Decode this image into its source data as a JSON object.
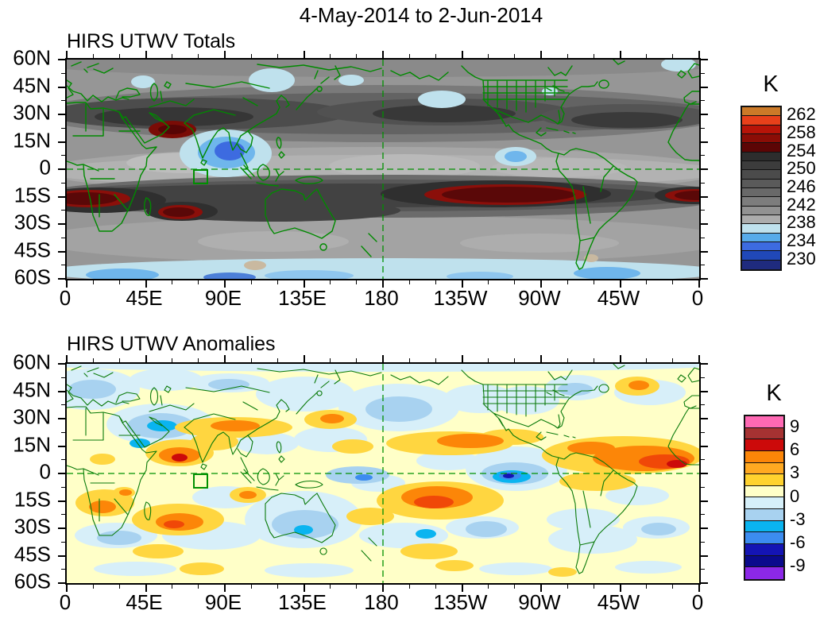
{
  "title": "4-May-2014 to 2-Jun-2014",
  "chart_data": [
    {
      "type": "heatmap",
      "title": "HIRS UTWV Totals",
      "projection": "equirectangular, lon 0E eastward to 360 (180 at center), lat 60N top to 60S bottom",
      "x_labels": [
        "0",
        "45E",
        "90E",
        "135E",
        "180",
        "135W",
        "90W",
        "45W",
        "0"
      ],
      "y_labels": [
        "60N",
        "45N",
        "30N",
        "15N",
        "0",
        "15S",
        "30S",
        "45S",
        "60S"
      ],
      "colorbar": {
        "title": "K",
        "tick_labels": [
          "262",
          "258",
          "254",
          "250",
          "246",
          "242",
          "238",
          "234",
          "230"
        ],
        "level_step_k": 2,
        "range_k": [
          228,
          264
        ],
        "colors_top_to_bottom": [
          "#cc7a28",
          "#e8401a",
          "#b81408",
          "#8b0d06",
          "#5c0505",
          "#2d2d2d",
          "#3c3c3c",
          "#4b4b4b",
          "#5a5a5a",
          "#696969",
          "#7d7d7d",
          "#929292",
          "#acacac",
          "#bfe1ed",
          "#57abea",
          "#3d6be0",
          "#2048b8",
          "#1f2b7e"
        ]
      },
      "feature_format": "ellipse [cx,cy,rx,ry,fill] in plot px (796x276), painted in order",
      "features": [
        [
          398,
          138,
          520,
          200,
          "#969696"
        ],
        [
          398,
          140,
          430,
          30,
          "#a6a6a6"
        ],
        [
          398,
          141,
          430,
          21,
          "#b2b2b2"
        ],
        [
          150,
          130,
          75,
          13,
          "#bdbdbd"
        ],
        [
          425,
          134,
          95,
          15,
          "#b9b9b9"
        ],
        [
          620,
          136,
          85,
          12,
          "#b7b7b7"
        ],
        [
          398,
          227,
          440,
          30,
          "#a3a3a3"
        ],
        [
          260,
          229,
          95,
          13,
          "#afafaf"
        ],
        [
          595,
          231,
          100,
          12,
          "#adadad"
        ],
        [
          398,
          6,
          430,
          16,
          "#8a8a8a"
        ],
        [
          398,
          68,
          440,
          36,
          "#7a7a7a"
        ],
        [
          398,
          68,
          430,
          26,
          "#636363"
        ],
        [
          165,
          68,
          190,
          20,
          "#4c4c4c"
        ],
        [
          475,
          66,
          160,
          17,
          "#515151"
        ],
        [
          705,
          72,
          110,
          16,
          "#545454"
        ],
        [
          135,
          72,
          100,
          12,
          "#363636"
        ],
        [
          475,
          68,
          90,
          11,
          "#383838"
        ],
        [
          705,
          76,
          70,
          10,
          "#3a3a3a"
        ],
        [
          133,
          88,
          30,
          11,
          "#7a0c06"
        ],
        [
          133,
          88,
          18,
          6,
          "#570505"
        ],
        [
          398,
          172,
          440,
          27,
          "#6b6b6b"
        ],
        [
          392,
          171,
          420,
          20,
          "#585858"
        ],
        [
          365,
          171,
          390,
          15,
          "#424242"
        ],
        [
          260,
          190,
          160,
          14,
          "#424242"
        ],
        [
          40,
          177,
          85,
          16,
          "#2f2f2f"
        ],
        [
          28,
          175,
          52,
          11,
          "#8b0f0a"
        ],
        [
          24,
          175,
          40,
          8,
          "#5a0808"
        ],
        [
          145,
          191,
          45,
          12,
          "#2f2f2f"
        ],
        [
          143,
          192,
          28,
          9,
          "#8b0f0a"
        ],
        [
          141,
          192,
          20,
          6,
          "#5a0808"
        ],
        [
          788,
          171,
          48,
          11,
          "#2f2f2f"
        ],
        [
          791,
          171,
          38,
          8,
          "#8b0f0a"
        ],
        [
          793,
          171,
          28,
          6,
          "#5a0808"
        ],
        [
          540,
          169,
          145,
          17,
          "#2f2f2f"
        ],
        [
          552,
          170,
          102,
          13,
          "#8b0f0a"
        ],
        [
          556,
          170,
          84,
          10,
          "#5a0808"
        ],
        [
          200,
          118,
          58,
          30,
          "#bfe1ed"
        ],
        [
          201,
          117,
          36,
          20,
          "#6fb6ec"
        ],
        [
          205,
          115,
          19,
          12,
          "#3d6be0"
        ],
        [
          258,
          26,
          29,
          15,
          "#bfe1ed"
        ],
        [
          472,
          50,
          30,
          11,
          "#bfe1ed"
        ],
        [
          358,
          26,
          16,
          7,
          "#bfe1ed"
        ],
        [
          96,
          28,
          15,
          8,
          "#bfe1ed"
        ],
        [
          770,
          6,
          22,
          9,
          "#bfe1ed"
        ],
        [
          608,
          40,
          10,
          5,
          "#bfe1ed"
        ],
        [
          565,
          122,
          26,
          12,
          "#bfe1ed"
        ],
        [
          565,
          122,
          14,
          7,
          "#6fb6ec"
        ],
        [
          398,
          267,
          430,
          17,
          "#bfe1ed"
        ],
        [
          70,
          271,
          46,
          8,
          "#6fb6ec"
        ],
        [
          305,
          272,
          56,
          7,
          "#8fc6ee"
        ],
        [
          680,
          269,
          42,
          8,
          "#6fb6ec"
        ],
        [
          205,
          274,
          33,
          6,
          "#4c7fd8"
        ],
        [
          520,
          273,
          42,
          6,
          "#8fc6ee"
        ],
        [
          237,
          259,
          14,
          6,
          "#c9b9a0"
        ],
        [
          660,
          250,
          9,
          5,
          "#c9b9a0"
        ]
      ]
    },
    {
      "type": "heatmap",
      "title": "HIRS UTWV Anomalies",
      "projection": "equirectangular, lon 0E eastward to 360 (180 at center), lat 60N top to 60S bottom",
      "x_labels": [
        "0",
        "45E",
        "90E",
        "135E",
        "180",
        "135W",
        "90W",
        "45W",
        "0"
      ],
      "y_labels": [
        "60N",
        "45N",
        "30N",
        "15N",
        "0",
        "15S",
        "30S",
        "45S",
        "60S"
      ],
      "colorbar": {
        "title": "K",
        "tick_labels": [
          "9",
          "6",
          "3",
          "0",
          "-3",
          "-6",
          "-9"
        ],
        "level_step_k": 1.5,
        "range_k": [
          -10.5,
          10.5
        ],
        "colors_top_to_bottom": [
          "#ff69b4",
          "#a63232",
          "#cc0a0a",
          "#fc8608",
          "#ffa921",
          "#ffd22e",
          "#ffffc8",
          "#d6f0fa",
          "#a8d2f0",
          "#0ab4f0",
          "#3c8cf0",
          "#1414b4",
          "#0a0a8c",
          "#8c28e8"
        ]
      },
      "feature_format": "ellipse [cx,cy,rx,ry,fill] in plot px (796x276), painted in order",
      "features": [
        [
          398,
          138,
          520,
          200,
          "#ffffc8"
        ],
        [
          30,
          32,
          62,
          26,
          "#d7eff9"
        ],
        [
          125,
          20,
          46,
          14,
          "#d7eff9"
        ],
        [
          205,
          24,
          50,
          12,
          "#d7eff9"
        ],
        [
          300,
          38,
          62,
          22,
          "#d7eff9"
        ],
        [
          418,
          55,
          76,
          30,
          "#d7eff9"
        ],
        [
          520,
          44,
          46,
          18,
          "#d7eff9"
        ],
        [
          578,
          46,
          42,
          18,
          "#d7eff9"
        ],
        [
          642,
          30,
          40,
          16,
          "#d7eff9"
        ],
        [
          734,
          36,
          45,
          16,
          "#d7eff9"
        ],
        [
          118,
          76,
          68,
          26,
          "#d7eff9"
        ],
        [
          252,
          100,
          40,
          14,
          "#d7eff9"
        ],
        [
          332,
          95,
          46,
          16,
          "#d7eff9"
        ],
        [
          392,
          150,
          34,
          11,
          "#d7eff9"
        ],
        [
          566,
          132,
          64,
          28,
          "#d7eff9"
        ],
        [
          298,
          196,
          74,
          36,
          "#d7eff9"
        ],
        [
          182,
          216,
          62,
          18,
          "#d7eff9"
        ],
        [
          62,
          216,
          52,
          16,
          "#d7eff9"
        ],
        [
          424,
          216,
          56,
          16,
          "#d7eff9"
        ],
        [
          523,
          206,
          46,
          14,
          "#d7eff9"
        ],
        [
          662,
          221,
          56,
          18,
          "#d7eff9"
        ],
        [
          742,
          206,
          42,
          14,
          "#d7eff9"
        ],
        [
          86,
          258,
          52,
          9,
          "#d7eff9"
        ],
        [
          305,
          260,
          56,
          9,
          "#d7eff9"
        ],
        [
          565,
          258,
          46,
          8,
          "#d7eff9"
        ],
        [
          732,
          256,
          42,
          8,
          "#d7eff9"
        ],
        [
          480,
          122,
          40,
          12,
          "#d7eff9"
        ],
        [
          718,
          166,
          40,
          12,
          "#d7eff9"
        ],
        [
          200,
          168,
          42,
          14,
          "#d7eff9"
        ],
        [
          650,
          196,
          46,
          14,
          "#d7eff9"
        ],
        [
          398,
          2,
          420,
          8,
          "#d7eff9"
        ],
        [
          118,
          78,
          42,
          16,
          "#a8d2f0"
        ],
        [
          32,
          32,
          30,
          12,
          "#a8d2f0"
        ],
        [
          418,
          57,
          42,
          16,
          "#a8d2f0"
        ],
        [
          564,
          138,
          42,
          14,
          "#a8d2f0"
        ],
        [
          300,
          202,
          42,
          18,
          "#a8d2f0"
        ],
        [
          66,
          219,
          28,
          9,
          "#a8d2f0"
        ],
        [
          745,
          208,
          22,
          8,
          "#a8d2f0"
        ],
        [
          366,
          140,
          40,
          11,
          "#a8d2f0"
        ],
        [
          204,
          26,
          26,
          7,
          "#a8d2f0"
        ],
        [
          640,
          32,
          22,
          8,
          "#a8d2f0"
        ],
        [
          528,
          208,
          26,
          10,
          "#a8d2f0"
        ],
        [
          120,
          78,
          19,
          7,
          "#0ab4f0"
        ],
        [
          560,
          142,
          24,
          8,
          "#0ab4f0"
        ],
        [
          298,
          209,
          12,
          6,
          "#0ab4f0"
        ],
        [
          452,
          214,
          13,
          6,
          "#0ab4f0"
        ],
        [
          92,
          100,
          13,
          6,
          "#0ab4f0"
        ],
        [
          558,
          141,
          14,
          5,
          "#3c8cf0"
        ],
        [
          556,
          141,
          7,
          3,
          "#1414b4"
        ],
        [
          374,
          143,
          11,
          4,
          "#3c8cf0"
        ],
        [
          210,
          80,
          74,
          13,
          "#ffd640"
        ],
        [
          142,
          112,
          43,
          17,
          "#ffd640"
        ],
        [
          186,
          98,
          30,
          11,
          "#ffd640"
        ],
        [
          332,
          70,
          33,
          12,
          "#ffd640"
        ],
        [
          228,
          165,
          23,
          10,
          "#ffd640"
        ],
        [
          140,
          196,
          58,
          20,
          "#ffd640"
        ],
        [
          48,
          175,
          37,
          17,
          "#ffd640"
        ],
        [
          470,
          172,
          80,
          24,
          "#ffd640"
        ],
        [
          482,
          100,
          80,
          15,
          "#ffd640"
        ],
        [
          700,
          115,
          102,
          24,
          "#ffd640"
        ],
        [
          668,
          148,
          48,
          12,
          "#ffd640"
        ],
        [
          718,
          28,
          28,
          12,
          "#ffd640"
        ],
        [
          170,
          258,
          28,
          8,
          "#ffd640"
        ],
        [
          488,
          254,
          24,
          7,
          "#ffd640"
        ],
        [
          624,
          262,
          18,
          6,
          "#ffd640"
        ],
        [
          115,
          236,
          32,
          9,
          "#ffd640"
        ],
        [
          456,
          236,
          36,
          10,
          "#ffd640"
        ],
        [
          360,
          104,
          26,
          9,
          "#ffd640"
        ],
        [
          560,
          92,
          40,
          10,
          "#ffd640"
        ],
        [
          382,
          192,
          30,
          11,
          "#ffd640"
        ],
        [
          45,
          120,
          16,
          7,
          "#ffd640"
        ],
        [
          72,
          162,
          14,
          7,
          "#ffd640"
        ],
        [
          212,
          78,
          31,
          7,
          "#fc8608"
        ],
        [
          142,
          115,
          26,
          10,
          "#fc8608"
        ],
        [
          334,
          69,
          15,
          6,
          "#fc8608"
        ],
        [
          228,
          165,
          11,
          5,
          "#fc8608"
        ],
        [
          142,
          199,
          30,
          11,
          "#fc8608"
        ],
        [
          45,
          180,
          17,
          8,
          "#fc8608"
        ],
        [
          466,
          168,
          45,
          14,
          "#fc8608"
        ],
        [
          508,
          97,
          42,
          9,
          "#fc8608"
        ],
        [
          726,
          119,
          64,
          16,
          "#fc8608"
        ],
        [
          720,
          27,
          13,
          6,
          "#fc8608"
        ],
        [
          660,
          106,
          30,
          8,
          "#fc8608"
        ],
        [
          74,
          162,
          8,
          4,
          "#fc8608"
        ],
        [
          462,
          174,
          25,
          8,
          "#f04808"
        ],
        [
          135,
          202,
          13,
          5,
          "#f04808"
        ],
        [
          752,
          123,
          32,
          9,
          "#f04808"
        ],
        [
          142,
          118,
          10,
          5,
          "#cc0a0a"
        ],
        [
          768,
          126,
          13,
          5,
          "#cc0a0a"
        ]
      ]
    }
  ]
}
